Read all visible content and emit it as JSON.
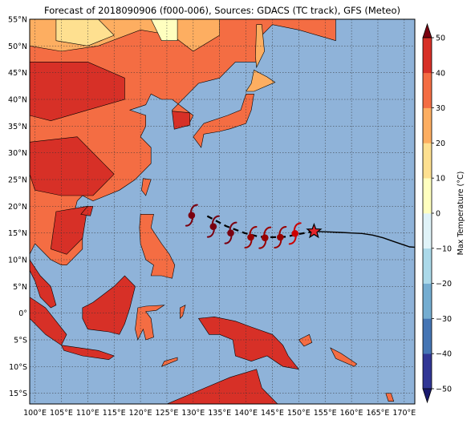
{
  "title": "Forecast of 2018090906 (f000-006), Sources: GDACS (TC track), GFS (Meteo)",
  "map": {
    "lon_range": [
      99,
      172
    ],
    "lat_range": [
      -17,
      55
    ],
    "lon_ticks": [
      "100°E",
      "105°E",
      "110°E",
      "115°E",
      "120°E",
      "125°E",
      "130°E",
      "135°E",
      "140°E",
      "145°E",
      "150°E",
      "155°E",
      "160°E",
      "165°E",
      "170°E"
    ],
    "lat_ticks": [
      "55°N",
      "50°N",
      "45°N",
      "40°N",
      "35°N",
      "30°N",
      "25°N",
      "20°N",
      "15°N",
      "10°N",
      "5°N",
      "0°",
      "5°S",
      "10°S",
      "15°S"
    ],
    "ocean_color": "#8fb3d9",
    "grid": true
  },
  "track": {
    "past": [
      [
        172.5,
        12.3
      ],
      [
        171,
        12.4
      ],
      [
        169.5,
        12.9
      ],
      [
        168,
        13.4
      ],
      [
        166,
        14.1
      ],
      [
        164,
        14.6
      ],
      [
        162,
        14.9
      ],
      [
        160,
        15.0
      ],
      [
        158,
        15.1
      ],
      [
        155.5,
        15.2
      ],
      [
        153,
        15.3
      ]
    ],
    "current": [
      152.9,
      15.3
    ],
    "forecast": [
      [
        150,
        14.8
      ],
      [
        147.7,
        14.3
      ],
      [
        145,
        14.2
      ],
      [
        142.4,
        14.3
      ],
      [
        139.7,
        15.0
      ],
      [
        136.2,
        16.3
      ],
      [
        132.2,
        18.4
      ]
    ],
    "forecast_symbols": [
      [
        149.3,
        14.9,
        "#cc0000"
      ],
      [
        146.5,
        14.2,
        "#990000"
      ],
      [
        143.6,
        14.1,
        "#990000"
      ],
      [
        140.9,
        14.2,
        "#990000"
      ],
      [
        137.1,
        15.0,
        "#7a0010"
      ],
      [
        133.8,
        16.2,
        "#7a0010"
      ],
      [
        129.7,
        18.3,
        "#7a0010"
      ]
    ]
  },
  "colorbar": {
    "label": "Max Temperature (°C)",
    "ticks": [
      "50",
      "40",
      "30",
      "20",
      "10",
      "0",
      "−10",
      "−20",
      "−30",
      "−40",
      "−50"
    ],
    "colors": [
      "#313695",
      "#4575b4",
      "#74add1",
      "#abd9e9",
      "#e0f3f8",
      "#ffffbf",
      "#fee090",
      "#fdae61",
      "#f46d43",
      "#d73027"
    ],
    "min_color": "#1a1a6e",
    "max_color": "#7a0010"
  },
  "land_colors": {
    "hot": "#d73027",
    "warm": "#f46d43",
    "mild": "#fdae61",
    "cool": "#fee090",
    "cold": "#ffffbf"
  }
}
